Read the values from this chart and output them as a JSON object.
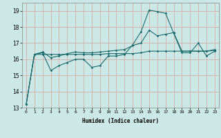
{
  "xlabel": "Humidex (Indice chaleur)",
  "bg_color": "#cce8e6",
  "grid_color": "#b8d8d6",
  "line_color": "#1a6b6b",
  "xlim": [
    -0.5,
    23.5
  ],
  "ylim": [
    13.0,
    19.5
  ],
  "yticks": [
    13,
    14,
    15,
    16,
    17,
    18,
    19
  ],
  "xticks": [
    0,
    1,
    2,
    3,
    4,
    5,
    6,
    7,
    8,
    9,
    10,
    11,
    12,
    13,
    14,
    15,
    16,
    17,
    18,
    19,
    20,
    21,
    22,
    23
  ],
  "line1_y": [
    13.2,
    16.3,
    16.4,
    15.3,
    15.6,
    15.8,
    16.0,
    16.0,
    15.5,
    15.6,
    16.2,
    16.2,
    16.3,
    16.9,
    17.7,
    19.05,
    18.95,
    18.85,
    17.6,
    16.4,
    16.4,
    17.0,
    16.2,
    16.5
  ],
  "line2_y": [
    13.2,
    16.3,
    16.45,
    16.1,
    16.2,
    16.35,
    16.45,
    16.4,
    16.4,
    16.45,
    16.5,
    16.55,
    16.6,
    16.85,
    17.0,
    17.8,
    17.45,
    17.55,
    17.65,
    16.5,
    16.5,
    16.5,
    16.5,
    16.6
  ],
  "line3_y": [
    13.2,
    16.3,
    16.3,
    16.3,
    16.3,
    16.3,
    16.3,
    16.3,
    16.3,
    16.3,
    16.35,
    16.35,
    16.35,
    16.35,
    16.4,
    16.5,
    16.5,
    16.5,
    16.5,
    16.5,
    16.5,
    16.5,
    16.5,
    16.55
  ]
}
